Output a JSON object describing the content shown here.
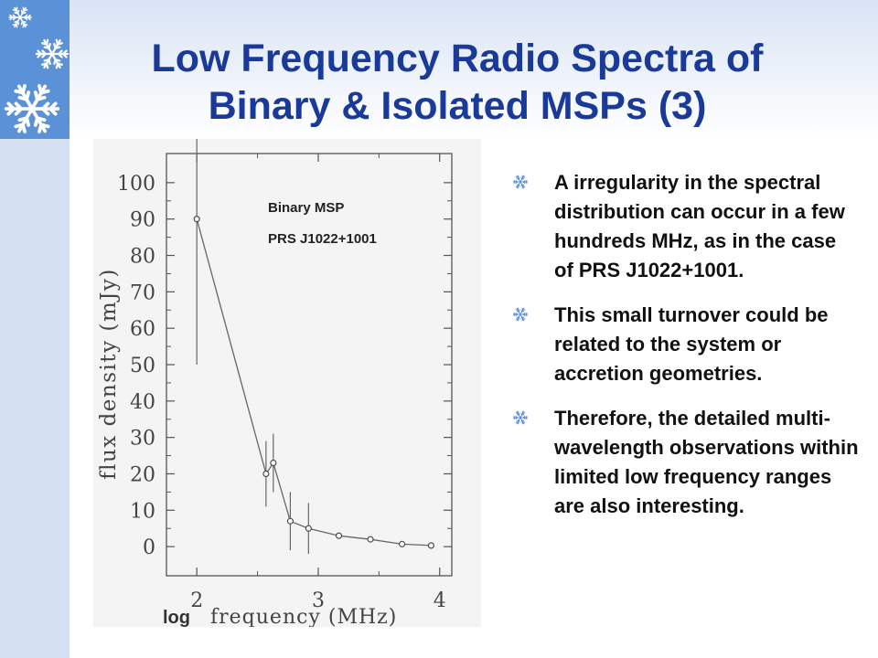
{
  "slide": {
    "title": "Low Frequency Radio Spectra  of\nBinary & Isolated MSPs (3)",
    "accent_color": "#1a3a99",
    "panel_color": "#5b91d6",
    "bullet_color": "#5b8fd1"
  },
  "bullets": [
    "A irregularity in the spectral distribution can occur in a few hundreds MHz, as in the case of PRS J1022+1001.",
    "This small turnover could be related to the system or accretion geometries.",
    "Therefore, the detailed multi-wavelength observations  within limited low frequency ranges are also interesting."
  ],
  "icons": [
    "snowflake-icon",
    "bullet-snowflake-icon"
  ],
  "chart_data": {
    "type": "line",
    "ylabel": "flux density (mJy)",
    "xlabel": "frequency (MHz)",
    "xlabel_prefix": "log",
    "annotation_lines": [
      "Binary MSP",
      "PRS J1022+1001"
    ],
    "xlim": [
      1.75,
      4.1
    ],
    "ylim": [
      -8,
      108
    ],
    "x_ticks": [
      2,
      3,
      4
    ],
    "y_ticks": [
      0,
      10,
      20,
      30,
      40,
      50,
      60,
      70,
      80,
      90,
      100
    ],
    "series": [
      {
        "x": [
          2.0,
          2.57,
          2.63,
          2.77,
          2.92,
          3.17,
          3.43,
          3.69,
          3.93
        ],
        "y": [
          90,
          20,
          23,
          7,
          5,
          3,
          2,
          0.7,
          0.3
        ],
        "err": [
          40,
          9,
          8,
          8,
          7,
          0,
          0,
          0,
          0
        ]
      }
    ]
  }
}
